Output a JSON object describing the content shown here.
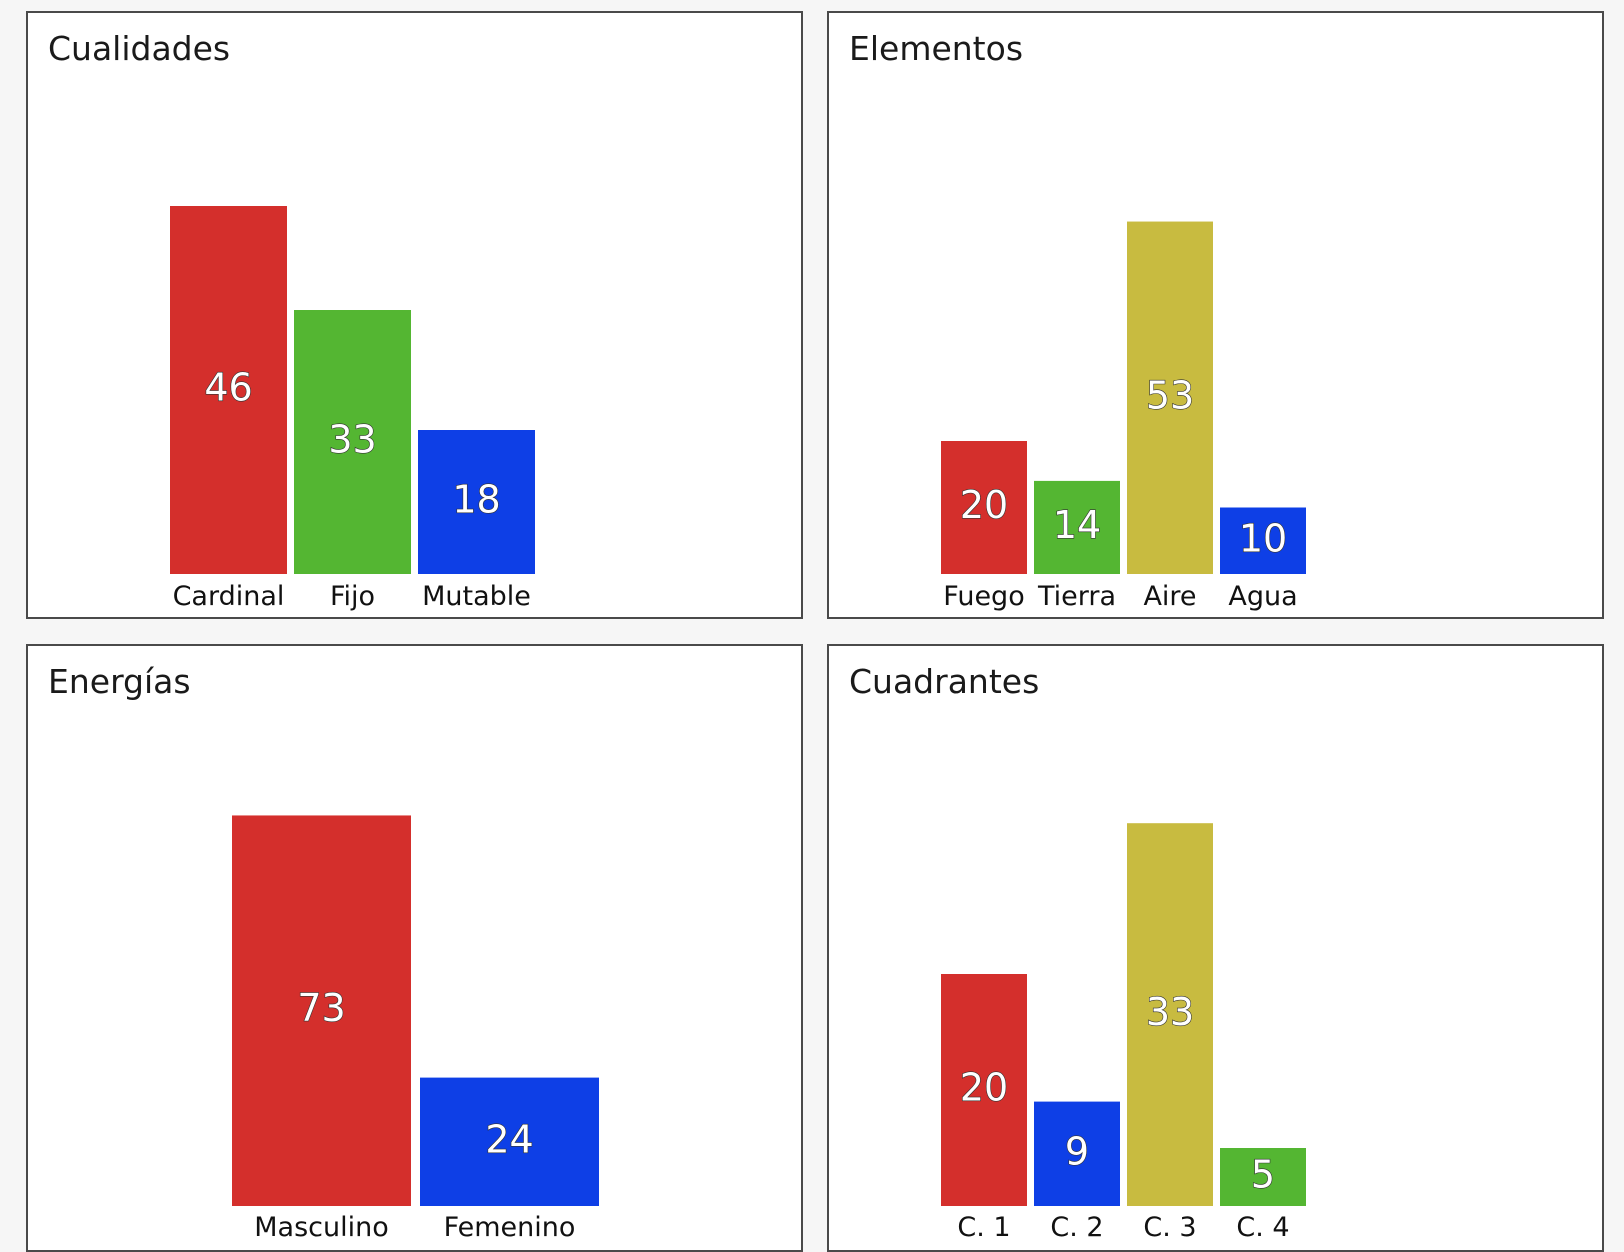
{
  "panels": [
    {
      "id": "cual",
      "title": "Cualidades"
    },
    {
      "id": "elem",
      "title": "Elementos"
    },
    {
      "id": "ener",
      "title": "Energías"
    },
    {
      "id": "cuad",
      "title": "Cuadrantes"
    }
  ],
  "chart_data": [
    {
      "type": "bar",
      "title": "Cualidades",
      "categories": [
        "Cardinal",
        "Fijo",
        "Mutable"
      ],
      "values": [
        46,
        33,
        18
      ],
      "colors": [
        "#d42f2c",
        "#54b632",
        "#0e3fe6"
      ],
      "data_labels": [
        "46",
        "33",
        "18"
      ]
    },
    {
      "type": "bar",
      "title": "Elementos",
      "categories": [
        "Fuego",
        "Tierra",
        "Aire",
        "Agua"
      ],
      "values": [
        20,
        14,
        53,
        10
      ],
      "colors": [
        "#d42f2c",
        "#54b632",
        "#c8bb40",
        "#0e3fe6"
      ],
      "data_labels": [
        "20",
        "14",
        "53",
        "10"
      ]
    },
    {
      "type": "bar",
      "title": "Energías",
      "categories": [
        "Masculino",
        "Femenino"
      ],
      "values": [
        73,
        24
      ],
      "colors": [
        "#d42f2c",
        "#0e3fe6"
      ],
      "data_labels": [
        "73",
        "24"
      ]
    },
    {
      "type": "bar",
      "title": "Cuadrantes",
      "categories": [
        "C. 1",
        "C. 2",
        "C. 3",
        "C. 4"
      ],
      "values": [
        20,
        9,
        33,
        5
      ],
      "colors": [
        "#d42f2c",
        "#0e3fe6",
        "#c8bb40",
        "#54b632"
      ],
      "data_labels": [
        "20",
        "9",
        "33",
        "5"
      ]
    }
  ]
}
